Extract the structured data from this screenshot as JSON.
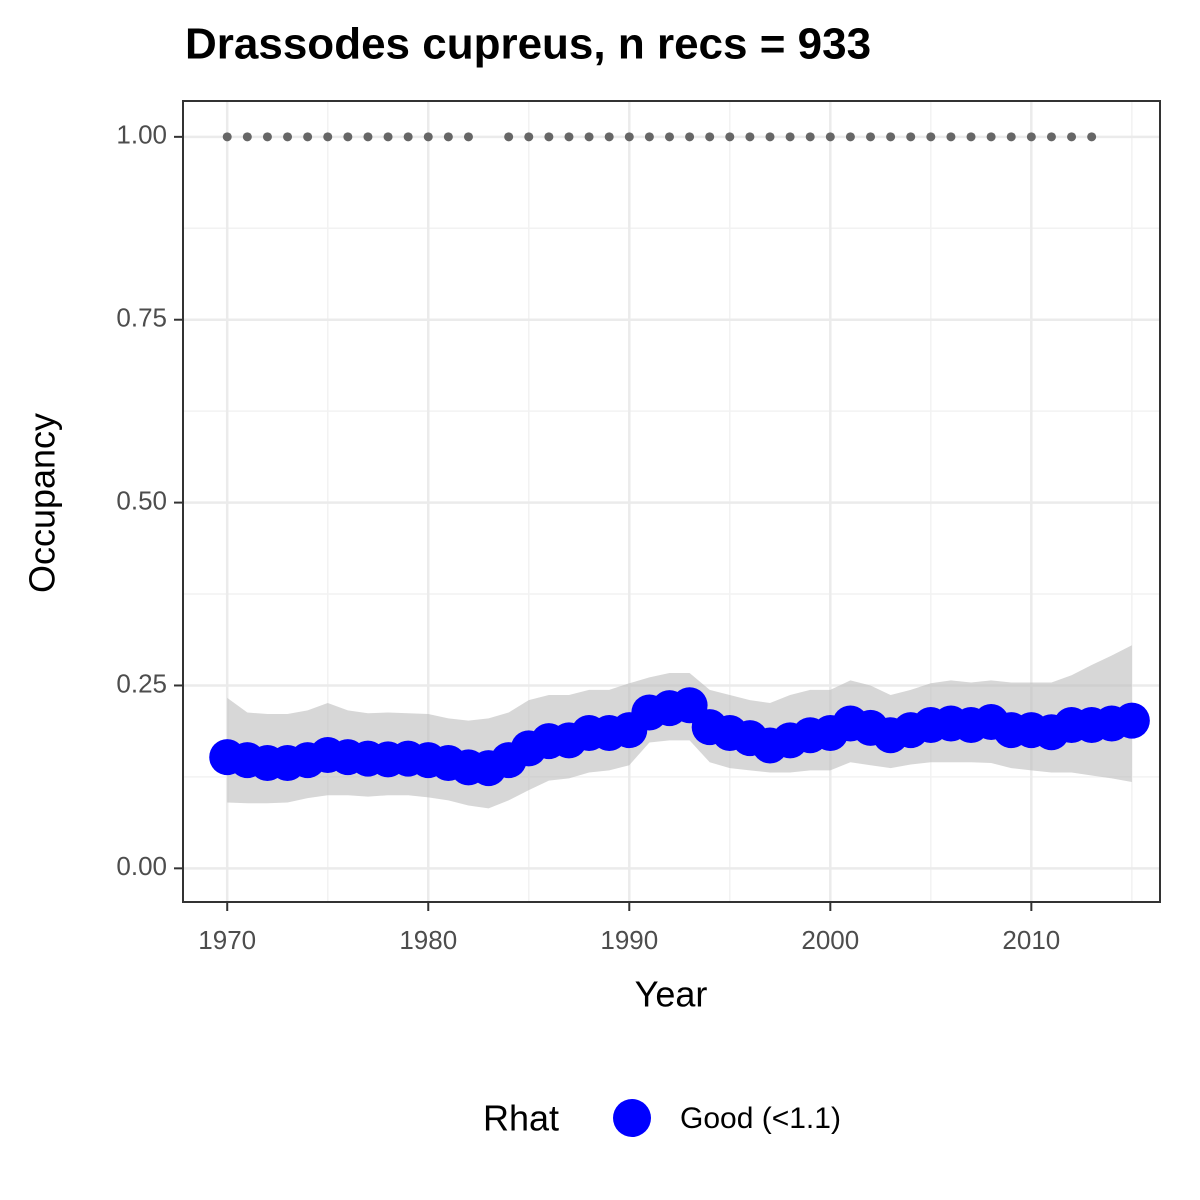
{
  "chart_data": {
    "type": "scatter",
    "title": "Drassodes cupreus, n recs = 933",
    "x_label": "Year",
    "y_label": "Occupancy",
    "legend_title": "Rhat",
    "x": [
      1970,
      1971,
      1972,
      1973,
      1974,
      1975,
      1976,
      1977,
      1978,
      1979,
      1980,
      1981,
      1982,
      1983,
      1984,
      1985,
      1986,
      1987,
      1988,
      1989,
      1990,
      1991,
      1992,
      1993,
      1994,
      1995,
      1996,
      1997,
      1998,
      1999,
      2000,
      2001,
      2002,
      2003,
      2004,
      2005,
      2006,
      2007,
      2008,
      2009,
      2010,
      2011,
      2012,
      2013,
      2014,
      2015
    ],
    "series": [
      {
        "name": "Good (<1.1)",
        "color": "#0000ff",
        "ribbon_color": "#bdbdbd",
        "values": [
          0.152,
          0.148,
          0.144,
          0.144,
          0.148,
          0.155,
          0.152,
          0.15,
          0.149,
          0.15,
          0.148,
          0.144,
          0.138,
          0.137,
          0.148,
          0.164,
          0.174,
          0.175,
          0.185,
          0.185,
          0.189,
          0.213,
          0.219,
          0.223,
          0.193,
          0.185,
          0.178,
          0.168,
          0.175,
          0.182,
          0.185,
          0.198,
          0.192,
          0.182,
          0.189,
          0.196,
          0.198,
          0.196,
          0.2,
          0.189,
          0.189,
          0.186,
          0.196,
          0.196,
          0.198,
          0.202
        ],
        "upper": [
          0.233,
          0.213,
          0.211,
          0.211,
          0.216,
          0.226,
          0.216,
          0.212,
          0.213,
          0.212,
          0.211,
          0.205,
          0.202,
          0.205,
          0.213,
          0.23,
          0.237,
          0.237,
          0.244,
          0.244,
          0.253,
          0.261,
          0.267,
          0.267,
          0.244,
          0.237,
          0.23,
          0.226,
          0.237,
          0.244,
          0.244,
          0.257,
          0.25,
          0.237,
          0.244,
          0.253,
          0.257,
          0.254,
          0.257,
          0.254,
          0.254,
          0.254,
          0.264,
          0.278,
          0.291,
          0.305
        ],
        "lower": [
          0.09,
          0.089,
          0.089,
          0.09,
          0.096,
          0.1,
          0.1,
          0.098,
          0.1,
          0.1,
          0.097,
          0.093,
          0.086,
          0.082,
          0.093,
          0.107,
          0.12,
          0.123,
          0.131,
          0.134,
          0.141,
          0.172,
          0.175,
          0.175,
          0.145,
          0.137,
          0.134,
          0.131,
          0.131,
          0.134,
          0.134,
          0.145,
          0.141,
          0.137,
          0.142,
          0.145,
          0.145,
          0.145,
          0.144,
          0.137,
          0.134,
          0.131,
          0.131,
          0.127,
          0.123,
          0.118
        ]
      }
    ],
    "records": {
      "color": "#666666",
      "x": [
        1970,
        1971,
        1972,
        1973,
        1974,
        1975,
        1976,
        1977,
        1978,
        1979,
        1980,
        1981,
        1982,
        1984,
        1985,
        1986,
        1987,
        1988,
        1989,
        1990,
        1991,
        1992,
        1993,
        1994,
        1995,
        1996,
        1997,
        1998,
        1999,
        2000,
        2001,
        2002,
        2003,
        2004,
        2005,
        2006,
        2007,
        2008,
        2009,
        2010,
        2011,
        2012,
        2013
      ],
      "values": [
        1,
        1,
        1,
        1,
        1,
        1,
        1,
        1,
        1,
        1,
        1,
        1,
        1,
        1,
        1,
        1,
        1,
        1,
        1,
        1,
        1,
        1,
        1,
        1,
        1,
        1,
        1,
        1,
        1,
        1,
        1,
        1,
        1,
        1,
        1,
        1,
        1,
        1,
        1,
        1,
        1,
        1,
        1
      ]
    },
    "xlim": [
      1967.8,
      2016.4
    ],
    "ylim": [
      -0.046,
      1.049
    ],
    "xticks": [
      1970,
      1980,
      1990,
      2000,
      2010
    ],
    "yticks": [
      {
        "value": 0,
        "label": "0.00"
      },
      {
        "value": 0.25,
        "label": "0.25"
      },
      {
        "value": 0.5,
        "label": "0.50"
      },
      {
        "value": 0.75,
        "label": "0.75"
      },
      {
        "value": 1,
        "label": "1.00"
      }
    ],
    "x_minor_grid": [
      1975,
      1985,
      1995,
      2005,
      2015
    ],
    "y_minor_grid": [
      0.125,
      0.375,
      0.625,
      0.875
    ],
    "grid": true,
    "legend_position": "bottom"
  }
}
